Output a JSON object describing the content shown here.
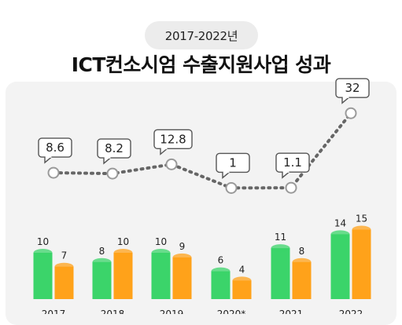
{
  "header": {
    "year_range": "2017-2022년",
    "title": "ICT컨소시엄 수출지원사업 성과"
  },
  "colors": {
    "green": "#3bd46a",
    "orange": "#ffa21a",
    "line": "#666666"
  },
  "chart_data": {
    "type": "bar",
    "categories": [
      "2017",
      "2018",
      "2019",
      "2020*",
      "2021",
      "2022"
    ],
    "series": [
      {
        "type": "bar",
        "values": [
          10,
          8,
          10,
          6,
          11,
          14
        ]
      },
      {
        "type": "bar",
        "values": [
          7,
          10,
          9,
          4,
          8,
          15
        ]
      },
      {
        "type": "line",
        "values": [
          8.6,
          8.2,
          12.8,
          1,
          1.1,
          32
        ],
        "labels": [
          "8.6",
          "8.2",
          "12.8",
          "1",
          "1.1",
          "32"
        ]
      }
    ]
  }
}
